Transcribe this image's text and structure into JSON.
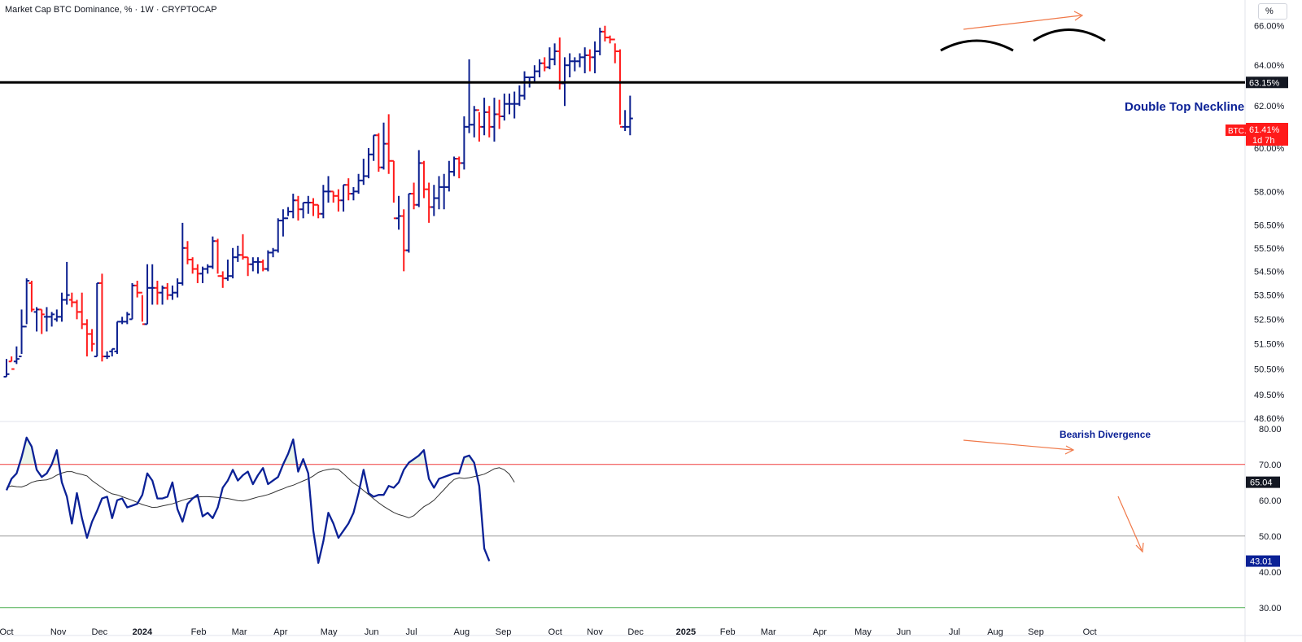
{
  "header": {
    "title": "Market Cap BTC Dominance, % · 1W · CRYPTOCAP"
  },
  "scale_button": "%",
  "colors": {
    "up": "#0b1f8f",
    "down": "#ff1a1a",
    "neckline": "#000000",
    "rsi_line": "#0b2196",
    "rsi_ma": "#333333",
    "annotation_arrow": "#f07848",
    "overbought": "#f03c3c",
    "oversold": "#4caf50"
  },
  "chart_data": [
    {
      "type": "ohlc",
      "ylim": [
        48.6,
        67.0
      ],
      "yticks": [
        "66.00%",
        "64.00%",
        "62.00%",
        "60.00%",
        "58.00%",
        "56.50%",
        "55.50%",
        "54.50%",
        "53.50%",
        "52.50%",
        "51.50%",
        "50.50%",
        "49.50%",
        "48.60%"
      ],
      "ytick_values": [
        66,
        64,
        62,
        60,
        58,
        56.5,
        55.5,
        54.5,
        53.5,
        52.5,
        51.5,
        50.5,
        49.5,
        48.6
      ],
      "neckline": {
        "value": 63.15,
        "label": "63.15%",
        "annotation": "Double Top Neckline"
      },
      "last_price": {
        "symbol": "BTC.D",
        "value": "61.41%",
        "countdown": "1d 7h"
      },
      "x_labels": [
        "Oct",
        "Nov",
        "Dec",
        "2024",
        "Feb",
        "Mar",
        "Apr",
        "May",
        "Jun",
        "Jul",
        "Aug",
        "Sep",
        "Oct",
        "Nov",
        "Dec",
        "2025",
        "Feb",
        "Mar",
        "Apr",
        "May",
        "Jun",
        "Jul",
        "Aug",
        "Sep",
        "Oct"
      ],
      "x_label_weeks": [
        0,
        10.3,
        18.5,
        27,
        38.2,
        46.3,
        54.5,
        64.1,
        72.6,
        80.5,
        90.5,
        98.8,
        109.1,
        117,
        125.1,
        135.1,
        143.4,
        151.5,
        161.7,
        170.3,
        178.4,
        188.5,
        196.6,
        204.7,
        215.4
      ],
      "bars": [
        [
          50.2,
          50.2,
          50.9,
          50.3
        ],
        [
          50.8,
          50.8,
          51.0,
          50.5
        ],
        [
          50.8,
          51.4,
          50.7,
          50.9
        ],
        [
          51.0,
          51.1,
          52.9,
          52.2
        ],
        [
          52.2,
          52.3,
          54.2,
          54.1
        ],
        [
          54.0,
          54.1,
          52.8,
          52.9
        ],
        [
          52.8,
          53.0,
          52.0,
          52.9
        ],
        [
          52.9,
          52.9,
          51.9,
          52.7
        ],
        [
          52.6,
          53.0,
          52.0,
          52.6
        ],
        [
          52.6,
          52.8,
          52.2,
          52.7
        ],
        [
          52.5,
          52.9,
          52.4,
          52.6
        ],
        [
          52.6,
          53.6,
          52.4,
          53.3
        ],
        [
          53.3,
          54.9,
          53.1,
          53.5
        ],
        [
          53.3,
          53.6,
          53.0,
          53.2
        ],
        [
          53.2,
          53.3,
          52.5,
          52.8
        ],
        [
          52.8,
          53.6,
          52.1,
          52.3
        ],
        [
          52.3,
          52.5,
          51.0,
          51.9
        ],
        [
          51.9,
          52.1,
          51.2,
          51.5
        ],
        [
          51.0,
          54.0,
          51.0,
          54.0
        ],
        [
          54.0,
          54.4,
          50.8,
          51.0
        ],
        [
          51.0,
          51.2,
          50.9,
          51.0
        ],
        [
          51.2,
          51.3,
          51.0,
          51.3
        ],
        [
          51.2,
          52.4,
          51.1,
          52.4
        ],
        [
          52.4,
          52.6,
          52.3,
          52.4
        ],
        [
          52.4,
          52.8,
          52.3,
          52.7
        ],
        [
          52.5,
          54.0,
          52.5,
          53.9
        ],
        [
          53.9,
          54.1,
          53.4,
          53.6
        ],
        [
          53.6,
          53.5,
          52.4,
          52.3
        ],
        [
          52.3,
          54.8,
          52.3,
          53.8
        ],
        [
          53.8,
          54.8,
          53.1,
          53.8
        ],
        [
          53.8,
          54.1,
          53.1,
          53.6
        ],
        [
          53.6,
          53.9,
          53.1,
          53.8
        ],
        [
          53.8,
          54.0,
          53.3,
          53.5
        ],
        [
          53.5,
          53.9,
          53.3,
          53.6
        ],
        [
          53.6,
          54.2,
          53.4,
          54.0
        ],
        [
          54.0,
          56.6,
          53.9,
          55.5
        ],
        [
          55.5,
          55.8,
          54.8,
          55.0
        ],
        [
          55.0,
          55.1,
          54.4,
          54.6
        ],
        [
          54.6,
          54.8,
          54.0,
          54.4
        ],
        [
          54.4,
          54.7,
          54.0,
          54.6
        ],
        [
          54.6,
          54.8,
          54.4,
          54.7
        ],
        [
          54.7,
          56.0,
          54.6,
          55.8
        ],
        [
          55.8,
          55.9,
          54.4,
          54.3
        ],
        [
          54.3,
          54.5,
          53.8,
          54.2
        ],
        [
          54.2,
          55.0,
          54.1,
          54.3
        ],
        [
          54.3,
          55.5,
          54.2,
          55.1
        ],
        [
          55.1,
          55.6,
          54.9,
          55.2
        ],
        [
          55.2,
          56.1,
          55.0,
          55.1
        ],
        [
          55.1,
          55.1,
          54.3,
          54.8
        ],
        [
          54.8,
          55.1,
          54.5,
          54.9
        ],
        [
          54.9,
          55.1,
          54.4,
          54.9
        ],
        [
          54.9,
          55.0,
          54.5,
          54.6
        ],
        [
          54.6,
          55.4,
          54.5,
          55.3
        ],
        [
          55.3,
          55.5,
          55.1,
          55.4
        ],
        [
          55.4,
          56.8,
          55.3,
          56.7
        ],
        [
          56.7,
          57.2,
          56.0,
          56.8
        ],
        [
          56.8,
          57.3,
          56.9,
          57.1
        ],
        [
          57.1,
          57.9,
          56.8,
          57.6
        ],
        [
          57.6,
          57.8,
          56.7,
          57.2
        ],
        [
          57.2,
          57.5,
          56.8,
          57.5
        ],
        [
          57.5,
          57.8,
          57.0,
          57.5
        ],
        [
          57.5,
          57.7,
          56.9,
          57.4
        ],
        [
          57.4,
          57.4,
          56.8,
          57.0
        ],
        [
          57.0,
          58.3,
          56.8,
          58.0
        ],
        [
          58.0,
          58.7,
          57.5,
          58.0
        ],
        [
          58.0,
          58.0,
          57.5,
          57.8
        ],
        [
          57.8,
          58.1,
          57.1,
          57.6
        ],
        [
          57.6,
          58.3,
          57.1,
          58.3
        ],
        [
          58.3,
          58.6,
          57.6,
          57.9
        ],
        [
          57.9,
          58.2,
          57.6,
          58.0
        ],
        [
          58.0,
          58.8,
          57.9,
          58.5
        ],
        [
          58.5,
          59.5,
          58.3,
          58.7
        ],
        [
          58.7,
          60.0,
          58.6,
          59.7
        ],
        [
          59.7,
          60.6,
          59.4,
          60.6
        ],
        [
          60.6,
          60.7,
          58.9,
          59.1
        ],
        [
          59.1,
          61.2,
          59.0,
          60.2
        ],
        [
          60.2,
          61.6,
          58.8,
          59.4
        ],
        [
          59.4,
          59.4,
          57.5,
          56.8
        ],
        [
          56.8,
          57.8,
          56.3,
          56.9
        ],
        [
          56.9,
          57.2,
          54.5,
          55.4
        ],
        [
          55.4,
          57.9,
          55.3,
          57.9
        ],
        [
          57.9,
          58.4,
          57.2,
          57.4
        ],
        [
          57.4,
          59.9,
          57.3,
          59.3
        ],
        [
          59.3,
          59.4,
          57.7,
          58.1
        ],
        [
          58.1,
          58.4,
          56.6,
          57.3
        ],
        [
          57.3,
          58.3,
          56.9,
          57.7
        ],
        [
          57.7,
          58.7,
          57.2,
          58.2
        ],
        [
          58.2,
          58.8,
          57.2,
          58.2
        ],
        [
          58.2,
          59.4,
          58.0,
          58.9
        ],
        [
          58.9,
          59.6,
          58.7,
          59.5
        ],
        [
          59.5,
          59.6,
          58.6,
          59.3
        ],
        [
          59.3,
          61.5,
          59.0,
          61.0
        ],
        [
          61.0,
          64.3,
          60.7,
          61.1
        ],
        [
          61.1,
          62.0,
          60.5,
          61.8
        ],
        [
          61.8,
          61.7,
          60.3,
          61.0
        ],
        [
          61.0,
          62.4,
          60.6,
          61.7
        ],
        [
          61.7,
          62.0,
          60.5,
          61.0
        ],
        [
          61.0,
          62.4,
          60.3,
          61.6
        ],
        [
          61.6,
          62.3,
          60.9,
          61.5
        ],
        [
          61.5,
          62.6,
          61.3,
          62.1
        ],
        [
          62.1,
          62.6,
          61.6,
          62.1
        ],
        [
          62.1,
          62.7,
          61.4,
          62.1
        ],
        [
          62.1,
          63.0,
          62.0,
          62.5
        ],
        [
          62.5,
          63.7,
          62.3,
          63.4
        ],
        [
          63.4,
          63.4,
          62.9,
          63.4
        ],
        [
          63.4,
          64.0,
          63.1,
          63.7
        ],
        [
          63.7,
          64.3,
          63.4,
          64.1
        ],
        [
          64.1,
          64.4,
          63.7,
          63.9
        ],
        [
          63.9,
          64.9,
          63.8,
          64.3
        ],
        [
          64.3,
          65.1,
          64.0,
          64.7
        ],
        [
          64.7,
          65.4,
          62.8,
          63.1
        ],
        [
          63.1,
          64.4,
          62.0,
          64.0
        ],
        [
          64.0,
          64.6,
          63.4,
          64.2
        ],
        [
          64.2,
          64.4,
          63.7,
          64.2
        ],
        [
          64.2,
          64.6,
          63.9,
          64.4
        ],
        [
          64.4,
          64.9,
          63.6,
          64.5
        ],
        [
          64.5,
          64.8,
          63.7,
          64.4
        ],
        [
          64.4,
          65.2,
          63.6,
          64.7
        ],
        [
          64.7,
          65.9,
          64.5,
          65.7
        ],
        [
          65.7,
          66.0,
          65.2,
          65.4
        ],
        [
          65.4,
          65.5,
          65.1,
          65.3
        ],
        [
          65.3,
          65.1,
          64.1,
          64.7
        ],
        [
          64.7,
          64.8,
          61.1,
          61.0
        ],
        [
          61.0,
          61.8,
          60.8,
          61.0
        ],
        [
          61.0,
          62.5,
          60.6,
          61.4
        ]
      ]
    },
    {
      "type": "line",
      "title": "",
      "ylim": [
        27,
        82
      ],
      "yticks": [
        80,
        70,
        60,
        50,
        40,
        30
      ],
      "levels": {
        "overbought": 70,
        "middle": 50,
        "oversold": 30
      },
      "last_value": "43.01",
      "last_ma": "65.04",
      "annotation": "Bearish Divergence",
      "series": [
        {
          "values": [
            62.8,
            66,
            67.5,
            72,
            77.5,
            75,
            68.5,
            66.5,
            67.5,
            70,
            74,
            65,
            61,
            53.5,
            62,
            55,
            49.5,
            54,
            57,
            60.5,
            61,
            55,
            60,
            60.5,
            58,
            58.5,
            59,
            61.5,
            67.5,
            65.5,
            60.5,
            60.5,
            61,
            65,
            57.5,
            54,
            59,
            60.5,
            61.5,
            55.5,
            56.5,
            55,
            58,
            63.5,
            65.5,
            68.5,
            65.5,
            67,
            68,
            64.5,
            67,
            69,
            64.5,
            65.5,
            66.5,
            70,
            73,
            77,
            68,
            71.5,
            67.5,
            51.5,
            42.5,
            48.5,
            56.5,
            53.5,
            49.5,
            51.5,
            53.5,
            56.5,
            62,
            68.5,
            62,
            61,
            61.5,
            61.5,
            64,
            63.5,
            65,
            68.5,
            70.5,
            71.5,
            72.5,
            74,
            66,
            63.5,
            66,
            66.5,
            67,
            67.5,
            67.5,
            72,
            72.5,
            70.5,
            64,
            46.5,
            43.01
          ]
        },
        {
          "values": [
            63.5,
            64,
            63.8,
            63.7,
            64.2,
            65,
            65.4,
            65.6,
            65.7,
            66.2,
            67,
            67.6,
            68,
            68,
            67.5,
            67.2,
            66.8,
            65.5,
            64.5,
            63.5,
            62.5,
            61.8,
            61.5,
            61,
            60.5,
            60,
            59.4,
            58.8,
            58.4,
            58,
            58.1,
            58.4,
            58.7,
            59,
            59.5,
            60,
            60.4,
            60.7,
            60.9,
            61,
            61,
            60.9,
            60.8,
            60.7,
            60.5,
            60.2,
            59.9,
            59.8,
            60.1,
            60.5,
            60.9,
            61.2,
            61.6,
            62.1,
            62.7,
            63.2,
            63.8,
            64.2,
            64.8,
            65.4,
            66,
            66.8,
            67.8,
            68.3,
            68.6,
            68.8,
            68.6,
            67.4,
            66.1,
            64.8,
            63.9,
            62.7,
            61.6,
            60.4,
            59.3,
            58.3,
            57.4,
            56.6,
            56,
            55.6,
            55.1,
            55.7,
            57,
            58.2,
            59,
            60,
            61.5,
            63,
            64.5,
            65.8,
            66.3,
            66.1,
            66.3,
            66.6,
            66.9,
            67.3,
            68,
            68.8,
            69.1,
            68.5,
            67.3,
            65.04
          ]
        }
      ]
    }
  ]
}
